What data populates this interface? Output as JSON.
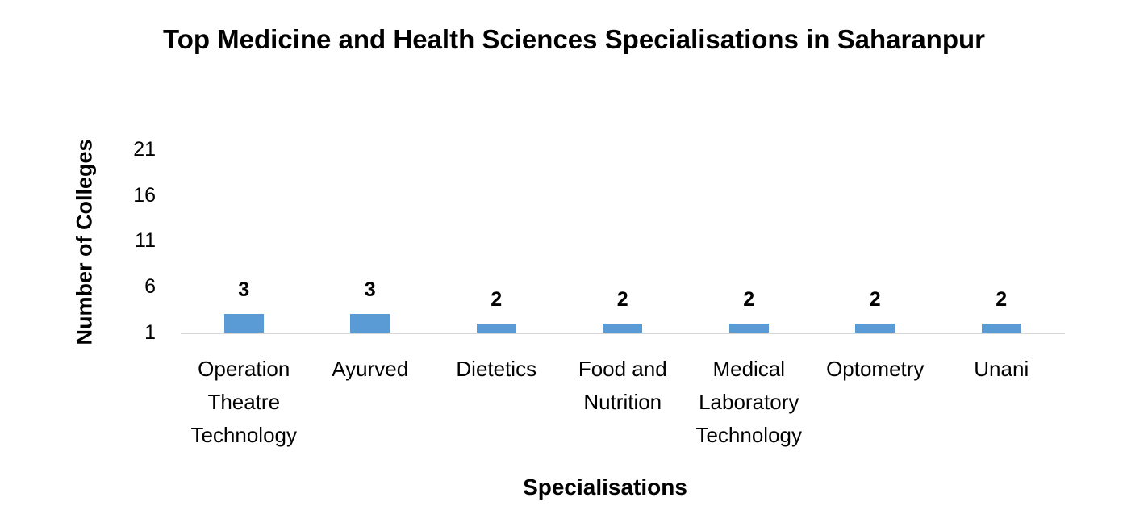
{
  "chart_data": {
    "type": "bar",
    "title": "Top Medicine and Health Sciences Specialisations in Saharanpur",
    "xlabel": "Specialisations",
    "ylabel": "Number of Colleges",
    "categories": [
      "Operation Theatre Technology",
      "Ayurved",
      "Dietetics",
      "Food and Nutrition",
      "Medical Laboratory Technology",
      "Optometry",
      "Unani"
    ],
    "category_lines": [
      [
        "Operation",
        "Theatre",
        "Technology"
      ],
      [
        "Ayurved"
      ],
      [
        "Dietetics"
      ],
      [
        "Food and",
        "Nutrition"
      ],
      [
        "Medical",
        "Laboratory",
        "Technology"
      ],
      [
        "Optometry"
      ],
      [
        "Unani"
      ]
    ],
    "values": [
      3,
      3,
      2,
      2,
      2,
      2,
      2
    ],
    "yticks": [
      "1",
      "6",
      "11",
      "16",
      "21"
    ],
    "ylim": [
      1,
      21
    ],
    "grid": false,
    "legend": "none",
    "bar_color": "#5b9bd5",
    "data_labels": true
  }
}
